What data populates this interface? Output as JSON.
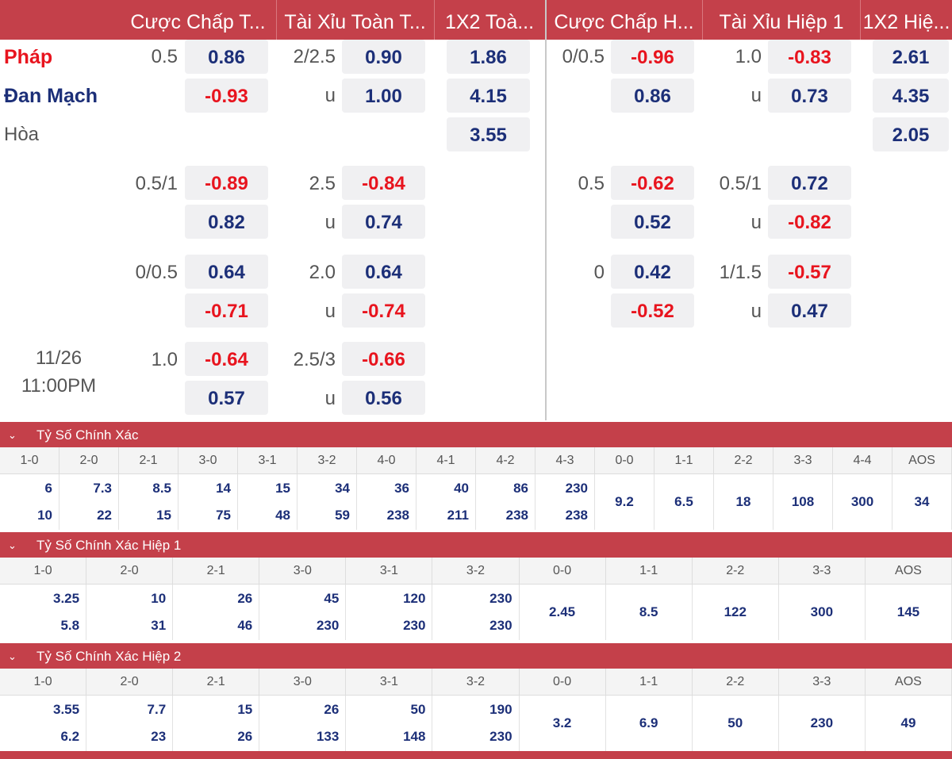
{
  "header": {
    "col_handicap_ft": "Cược Chấp T...",
    "col_ou_ft": "Tài Xỉu Toàn T...",
    "col_1x2_ft": "1X2 Toà...",
    "col_handicap_h1": "Cược Chấp H...",
    "col_ou_h1": "Tài Xỉu Hiệp 1",
    "col_1x2_h1": "1X2 Hiệ..."
  },
  "match": {
    "home": "Pháp",
    "away": "Đan Mạch",
    "draw": "Hòa",
    "date": "11/26",
    "time": "11:00PM",
    "colors": {
      "home": "#e8141e",
      "away": "#1c2f78",
      "draw": "#555555"
    }
  },
  "odds": {
    "row1": {
      "hc_line": "0.5",
      "hc_home": "0.86",
      "hc_away": "-0.93",
      "ou_line": "2/2.5",
      "ou_over": "0.90",
      "ou_under_label": "u",
      "ou_under": "1.00",
      "x_home": "1.86",
      "x_away": "4.15",
      "x_draw": "3.55",
      "h1_hc_line": "0/0.5",
      "h1_hc_home": "-0.96",
      "h1_hc_away": "0.86",
      "h1_ou_line": "1.0",
      "h1_ou_over": "-0.83",
      "h1_ou_under_label": "u",
      "h1_ou_under": "0.73",
      "h1_x_home": "2.61",
      "h1_x_away": "4.35",
      "h1_x_draw": "2.05"
    },
    "row2": {
      "hc_line": "0.5/1",
      "hc_home": "-0.89",
      "hc_away": "0.82",
      "ou_line": "2.5",
      "ou_over": "-0.84",
      "ou_under_label": "u",
      "ou_under": "0.74",
      "h1_hc_line": "0.5",
      "h1_hc_home": "-0.62",
      "h1_hc_away": "0.52",
      "h1_ou_line": "0.5/1",
      "h1_ou_over": "0.72",
      "h1_ou_under_label": "u",
      "h1_ou_under": "-0.82"
    },
    "row3": {
      "hc_line": "0/0.5",
      "hc_home": "0.64",
      "hc_away": "-0.71",
      "ou_line": "2.0",
      "ou_over": "0.64",
      "ou_under_label": "u",
      "ou_under": "-0.74",
      "h1_hc_line": "0",
      "h1_hc_home": "0.42",
      "h1_hc_away": "-0.52",
      "h1_ou_line": "1/1.5",
      "h1_ou_over": "-0.57",
      "h1_ou_under_label": "u",
      "h1_ou_under": "0.47"
    },
    "row4": {
      "hc_line": "1.0",
      "hc_home": "-0.64",
      "hc_away": "0.57",
      "ou_line": "2.5/3",
      "ou_over": "-0.66",
      "ou_under_label": "u",
      "ou_under": "0.56"
    }
  },
  "correct_score": {
    "title": "Tỷ Số Chính Xác",
    "labels": [
      "1-0",
      "2-0",
      "2-1",
      "3-0",
      "3-1",
      "3-2",
      "4-0",
      "4-1",
      "4-2",
      "4-3",
      "0-0",
      "1-1",
      "2-2",
      "3-3",
      "4-4",
      "AOS"
    ],
    "home": [
      "6",
      "7.3",
      "8.5",
      "14",
      "15",
      "34",
      "36",
      "40",
      "86",
      "230"
    ],
    "away": [
      "10",
      "22",
      "15",
      "75",
      "48",
      "59",
      "238",
      "211",
      "238",
      "238"
    ],
    "single": [
      "9.2",
      "6.5",
      "18",
      "108",
      "300",
      "34"
    ]
  },
  "correct_score_h1": {
    "title": "Tỷ Số Chính Xác Hiệp 1",
    "labels": [
      "1-0",
      "2-0",
      "2-1",
      "3-0",
      "3-1",
      "3-2",
      "0-0",
      "1-1",
      "2-2",
      "3-3",
      "AOS"
    ],
    "home": [
      "3.25",
      "10",
      "26",
      "45",
      "120",
      "230"
    ],
    "away": [
      "5.8",
      "31",
      "46",
      "230",
      "230",
      "230"
    ],
    "single": [
      "2.45",
      "8.5",
      "122",
      "300",
      "145"
    ]
  },
  "correct_score_h2": {
    "title": "Tỷ Số Chính Xác Hiệp 2",
    "labels": [
      "1-0",
      "2-0",
      "2-1",
      "3-0",
      "3-1",
      "3-2",
      "0-0",
      "1-1",
      "2-2",
      "3-3",
      "AOS"
    ],
    "home": [
      "3.55",
      "7.7",
      "15",
      "26",
      "50",
      "190"
    ],
    "away": [
      "6.2",
      "23",
      "26",
      "133",
      "148",
      "230"
    ],
    "single": [
      "3.2",
      "6.9",
      "50",
      "230",
      "49"
    ]
  },
  "icons": {
    "section_toggle": "chevron-down-icon"
  },
  "theme": {
    "accent": "#c4404a",
    "odds_blue": "#1c2f78",
    "odds_red": "#e8141e"
  }
}
